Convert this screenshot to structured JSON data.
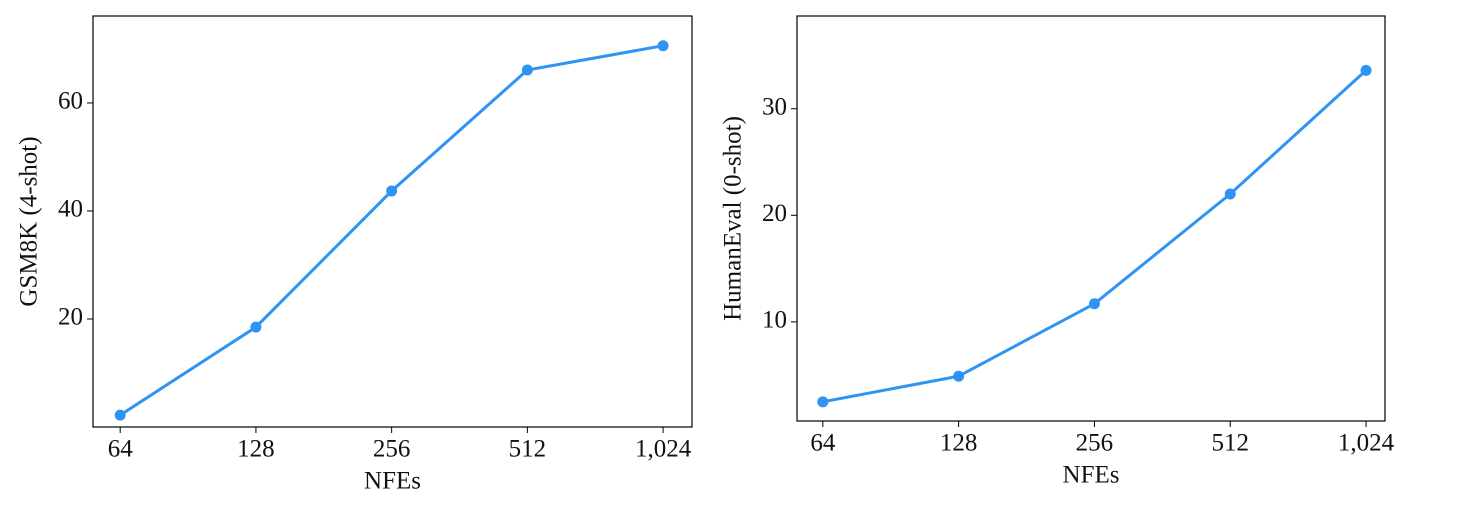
{
  "chart_data": [
    {
      "type": "line",
      "xlabel": "NFEs",
      "ylabel": "GSM8K (4-shot)",
      "x": [
        64,
        128,
        256,
        512,
        1024
      ],
      "xlog": true,
      "series": [
        {
          "color": "#2f93f5",
          "values": [
            2.2,
            18.5,
            43.7,
            66.1,
            70.6
          ]
        }
      ],
      "xlim": [
        55.7,
        1187
      ],
      "xticks": [
        64,
        128,
        256,
        512,
        {
          "value": 1024,
          "label": "1,024"
        }
      ],
      "ylim": [
        0,
        76.1
      ],
      "yticks": [
        20,
        40,
        60
      ],
      "grid": false
    },
    {
      "type": "line",
      "xlabel": "NFEs",
      "ylabel": "HumanEval (0-shot)",
      "x": [
        64,
        128,
        256,
        512,
        1024
      ],
      "xlog": true,
      "series": [
        {
          "color": "#2f93f5",
          "values": [
            2.5,
            4.9,
            11.7,
            22.0,
            33.6
          ]
        }
      ],
      "xlim": [
        56.1,
        1128
      ],
      "xticks": [
        64,
        128,
        256,
        512,
        {
          "value": 1024,
          "label": "1,024"
        }
      ],
      "ylim": [
        0.7,
        38.7
      ],
      "yticks": [
        10,
        20,
        30
      ],
      "grid": false
    }
  ]
}
